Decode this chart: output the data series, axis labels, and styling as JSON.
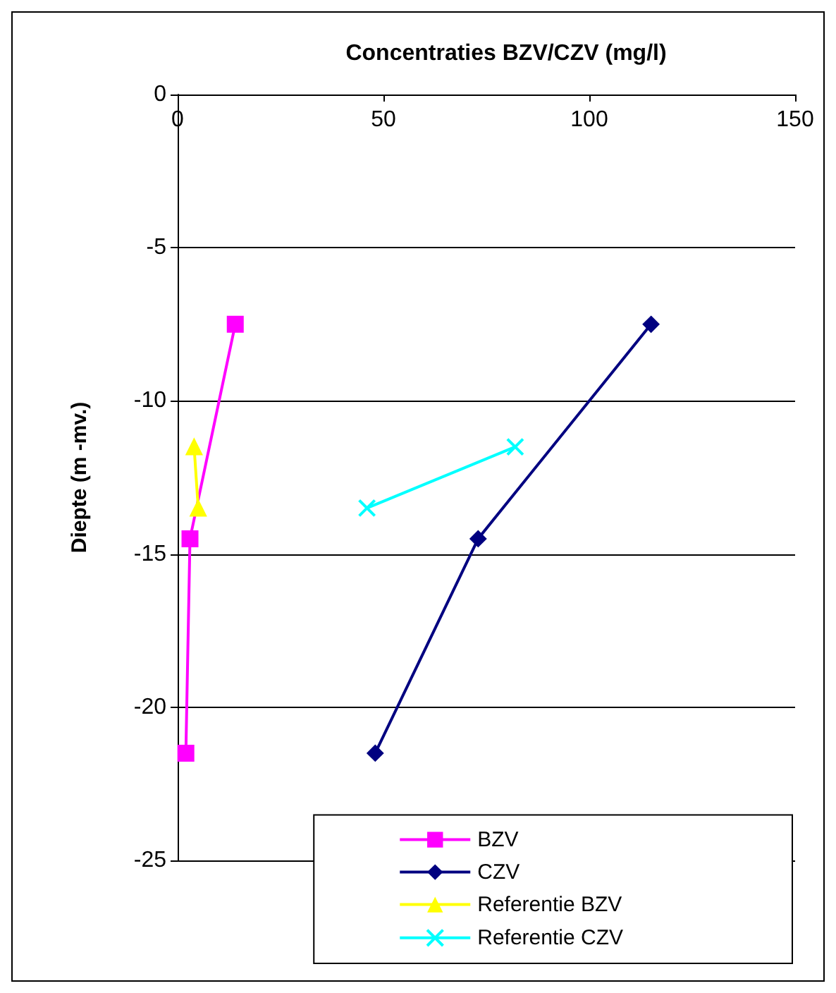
{
  "chart_data": {
    "type": "line",
    "title": "Concentraties BZV/CZV (mg/l)",
    "ylabel": "Diepte (m -mv.)",
    "xlim": [
      0,
      150
    ],
    "xticks": [
      0,
      50,
      100,
      150
    ],
    "ylim": [
      -25,
      0
    ],
    "yticks": [
      -25,
      -20,
      -15,
      -10,
      -5,
      0
    ],
    "grid": "y",
    "legend": "bottom right",
    "series": [
      {
        "name": "BZV",
        "color": "#ff00ff",
        "marker": "square",
        "x": [
          14,
          3,
          2
        ],
        "values": [
          -7.5,
          -14.5,
          -21.5
        ]
      },
      {
        "name": "CZV",
        "color": "#000080",
        "marker": "diamond",
        "x": [
          115,
          73,
          48
        ],
        "values": [
          -7.5,
          -14.5,
          -21.5
        ]
      },
      {
        "name": "Referentie BZV",
        "color": "#ffff00",
        "marker": "triangle",
        "x": [
          4,
          5
        ],
        "values": [
          -11.5,
          -13.5
        ]
      },
      {
        "name": "Referentie CZV",
        "color": "#00ffff",
        "marker": "cross",
        "x": [
          82,
          46
        ],
        "values": [
          -11.5,
          -13.5
        ]
      }
    ]
  }
}
